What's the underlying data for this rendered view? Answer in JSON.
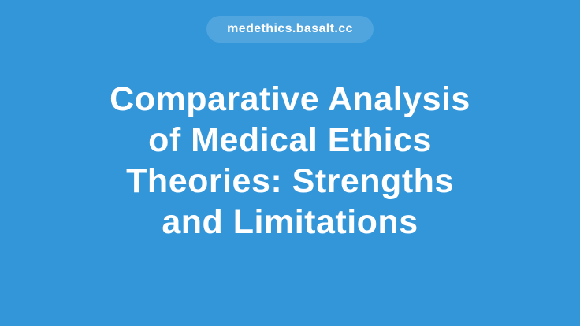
{
  "page": {
    "background_color": "#3296d9",
    "text_color": "#ffffff"
  },
  "badge": {
    "label": "medethics.basalt.cc",
    "background_color": "rgba(255,255,255,0.15)"
  },
  "title": {
    "full_text": "Comparative Analysis of Medical Ethics Theories: Strengths and Limitations",
    "lines": [
      "Comparative Analysis",
      "of Medical Ethics",
      "Theories: Strengths",
      "and Limitations"
    ]
  }
}
